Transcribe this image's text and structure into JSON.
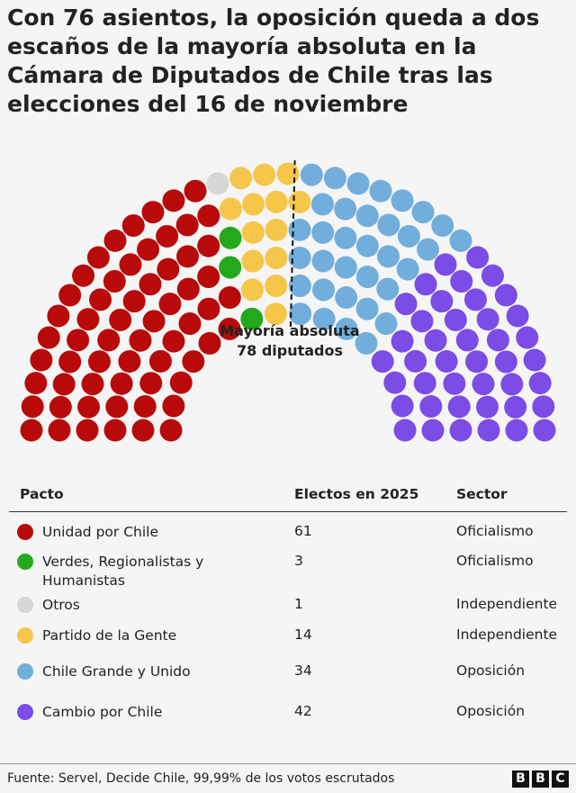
{
  "chart_data": {
    "type": "parliament",
    "title": "Con 76 asientos, la oposición queda a dos escaños de la mayoría absoluta en la Cámara de Diputados de Chile tras las elecciones del 16 de noviembre",
    "majority_title": "Mayoría absoluta",
    "majority": {
      "value": 78,
      "label": "78 diputados"
    },
    "table_headers": [
      "Pacto",
      "Electos en 2025",
      "Sector"
    ],
    "series": [
      {
        "name": "Unidad por Chile",
        "color": "#b80a0a",
        "values": [
          61
        ],
        "sector": "Oficialismo"
      },
      {
        "name": "Verdes, Regionalistas y Humanistas",
        "color": "#24a81e",
        "values": [
          3
        ],
        "sector": "Oficialismo"
      },
      {
        "name": "Otros",
        "color": "#d6d6d6",
        "values": [
          1
        ],
        "sector": "Independiente"
      },
      {
        "name": "Partido de la Gente",
        "color": "#f6c64a",
        "values": [
          14
        ],
        "sector": "Independiente"
      },
      {
        "name": "Chile Grande y Unido",
        "color": "#72aedc",
        "values": [
          34
        ],
        "sector": "Oposición"
      },
      {
        "name": "Cambio por Chile",
        "color": "#7b4ce6",
        "values": [
          42
        ],
        "sector": "Oposición"
      }
    ],
    "source": "Fuente: Servel, Decide Chile,  99,99% de los votos escrutados",
    "logo": [
      "B",
      "B",
      "C"
    ]
  }
}
